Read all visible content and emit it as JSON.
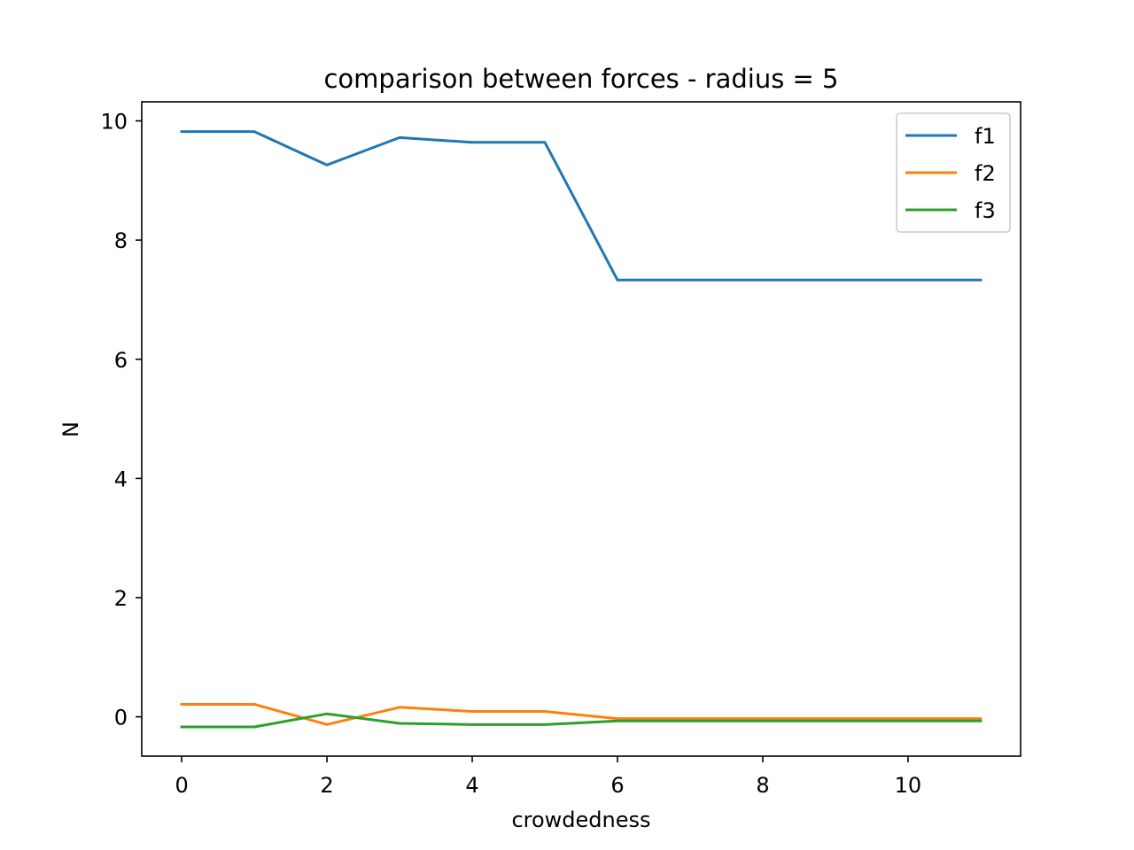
{
  "chart_data": {
    "type": "line",
    "title": "comparison between forces - radius = 5",
    "xlabel": "crowdedness",
    "ylabel": "N",
    "x": [
      0,
      1,
      2,
      3,
      4,
      5,
      6,
      7,
      8,
      9,
      10,
      11
    ],
    "xlim": [
      -0.55,
      11.55
    ],
    "ylim": [
      -0.66,
      10.32
    ],
    "xticks": [
      0,
      2,
      4,
      6,
      8,
      10
    ],
    "yticks": [
      0,
      2,
      4,
      6,
      8,
      10
    ],
    "grid": false,
    "legend": "top-right",
    "series": [
      {
        "name": "f1",
        "color": "#1f77b4",
        "values": [
          9.82,
          9.82,
          9.26,
          9.72,
          9.64,
          9.64,
          7.33,
          7.33,
          7.33,
          7.33,
          7.33,
          7.33
        ]
      },
      {
        "name": "f2",
        "color": "#ff7f0e",
        "values": [
          0.21,
          0.21,
          -0.13,
          0.16,
          0.09,
          0.09,
          -0.03,
          -0.03,
          -0.03,
          -0.03,
          -0.03,
          -0.03
        ]
      },
      {
        "name": "f3",
        "color": "#2ca02c",
        "values": [
          -0.17,
          -0.17,
          0.05,
          -0.11,
          -0.13,
          -0.13,
          -0.07,
          -0.07,
          -0.07,
          -0.07,
          -0.07,
          -0.07
        ]
      }
    ]
  }
}
